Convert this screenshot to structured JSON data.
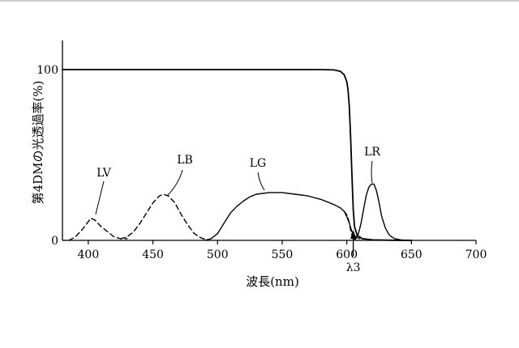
{
  "chart_data": {
    "type": "line",
    "title": "",
    "xlabel": "波長(nm)",
    "ylabel": "第4DMの光透過率(%)",
    "xlim": [
      380,
      700
    ],
    "ylim": [
      0,
      100
    ],
    "x_ticks": [
      400,
      450,
      500,
      550,
      600,
      650,
      700
    ],
    "y_ticks": [
      0,
      100
    ],
    "grid": false,
    "legend": "none",
    "marker_label": "λ3",
    "marker_x": 605,
    "series": [
      {
        "label": "",
        "style": "solid",
        "points": [
          [
            380,
            100
          ],
          [
            400,
            100
          ],
          [
            450,
            100
          ],
          [
            500,
            100
          ],
          [
            550,
            100
          ],
          [
            580,
            100
          ],
          [
            590,
            99.8
          ],
          [
            595,
            99
          ],
          [
            598,
            97
          ],
          [
            600,
            93
          ],
          [
            601,
            88
          ],
          [
            602,
            78
          ],
          [
            603,
            60
          ],
          [
            604,
            38
          ],
          [
            605,
            18
          ],
          [
            606,
            8
          ],
          [
            608,
            3
          ],
          [
            612,
            1
          ],
          [
            620,
            0.3
          ],
          [
            640,
            0
          ],
          [
            650,
            0
          ]
        ]
      },
      {
        "label": "LV",
        "style": "dashed",
        "points": [
          [
            385,
            0
          ],
          [
            390,
            2
          ],
          [
            395,
            6
          ],
          [
            400,
            11
          ],
          [
            402,
            13
          ],
          [
            405,
            12
          ],
          [
            410,
            8
          ],
          [
            415,
            5
          ],
          [
            420,
            2
          ],
          [
            425,
            1
          ],
          [
            430,
            1
          ]
        ]
      },
      {
        "label": "LB",
        "style": "dashed",
        "points": [
          [
            425,
            1
          ],
          [
            430,
            2
          ],
          [
            435,
            5
          ],
          [
            440,
            10
          ],
          [
            445,
            16
          ],
          [
            450,
            22
          ],
          [
            455,
            26
          ],
          [
            458,
            27
          ],
          [
            462,
            26
          ],
          [
            467,
            22
          ],
          [
            472,
            15
          ],
          [
            477,
            9
          ],
          [
            482,
            4
          ],
          [
            487,
            1.5
          ],
          [
            493,
            0
          ]
        ]
      },
      {
        "label": "LG",
        "style": "solid",
        "points": [
          [
            490,
            0
          ],
          [
            495,
            1
          ],
          [
            500,
            4
          ],
          [
            505,
            10
          ],
          [
            510,
            16
          ],
          [
            515,
            20
          ],
          [
            520,
            23
          ],
          [
            525,
            25.5
          ],
          [
            530,
            27
          ],
          [
            540,
            28
          ],
          [
            550,
            28
          ],
          [
            560,
            27
          ],
          [
            570,
            26
          ],
          [
            580,
            24
          ],
          [
            590,
            21
          ],
          [
            595,
            19
          ],
          [
            598,
            17
          ],
          [
            600,
            14
          ],
          [
            602,
            10
          ],
          [
            604,
            5
          ],
          [
            607,
            2
          ],
          [
            610,
            1
          ]
        ]
      },
      {
        "label": "",
        "style": "dashed",
        "points": [
          [
            598,
            17
          ],
          [
            600,
            15
          ],
          [
            601,
            13
          ],
          [
            602,
            10
          ],
          [
            603,
            6
          ],
          [
            604,
            3
          ],
          [
            605,
            1
          ]
        ]
      },
      {
        "label": "LR",
        "style": "solid",
        "points": [
          [
            605,
            0
          ],
          [
            607,
            1
          ],
          [
            609,
            4
          ],
          [
            611,
            10
          ],
          [
            613,
            18
          ],
          [
            615,
            26
          ],
          [
            617,
            31
          ],
          [
            619,
            33
          ],
          [
            621,
            33
          ],
          [
            623,
            29
          ],
          [
            625,
            22
          ],
          [
            627,
            14
          ],
          [
            630,
            7
          ],
          [
            633,
            3
          ],
          [
            637,
            1
          ],
          [
            642,
            0.3
          ],
          [
            650,
            0
          ]
        ]
      }
    ]
  }
}
